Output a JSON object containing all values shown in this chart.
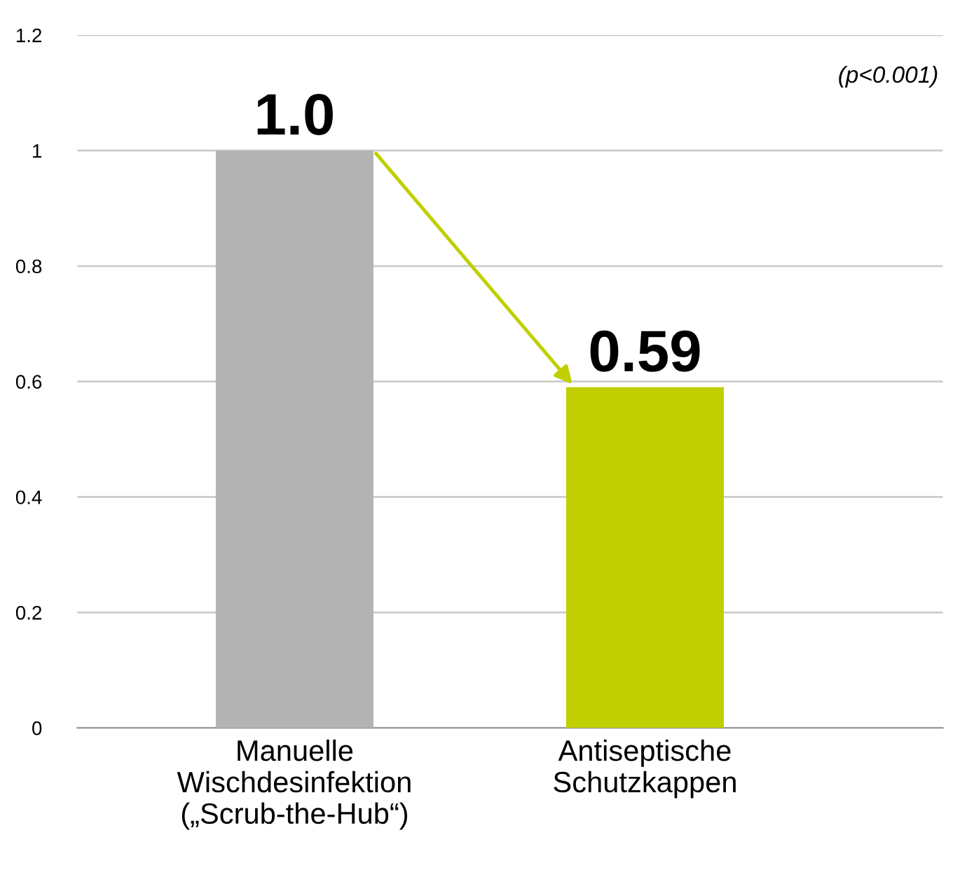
{
  "chart_data": {
    "type": "bar",
    "categories": [
      "Manuelle\nWischdesinfektion\n(„Scrub-the-Hub“)",
      "Antiseptische\nSchutzkappen"
    ],
    "values": [
      1.0,
      0.59
    ],
    "colors": [
      "#b3b3b3",
      "#c0cf00"
    ],
    "value_labels": [
      "1.0",
      "0.59"
    ],
    "ylim": [
      0,
      1.2
    ],
    "yticks": [
      0,
      0.2,
      0.4,
      0.6,
      0.8,
      1,
      1.2
    ],
    "grid": "y",
    "annotations": [
      "(p<0.001)"
    ]
  }
}
